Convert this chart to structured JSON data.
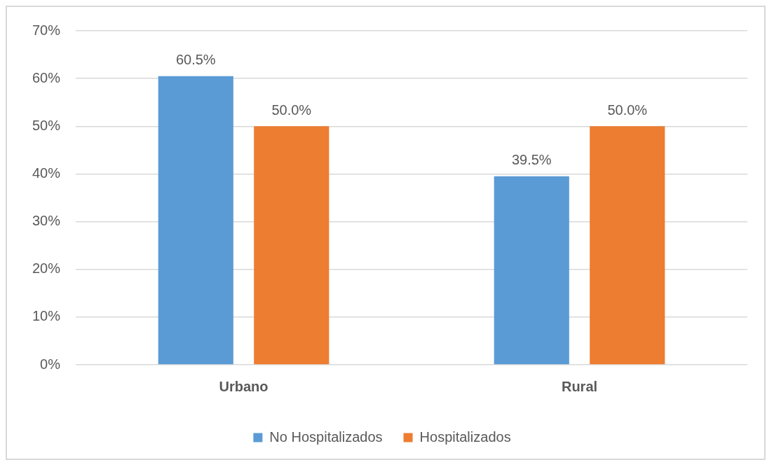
{
  "chart_data": {
    "type": "bar",
    "categories": [
      "Urbano",
      "Rural"
    ],
    "series": [
      {
        "name": "No Hospitalizados",
        "color": "#5b9bd5",
        "values": [
          60.5,
          39.5
        ],
        "value_labels": [
          "60.5%",
          "39.5%"
        ]
      },
      {
        "name": "Hospitalizados",
        "color": "#ed7d31",
        "values": [
          50.0,
          50.0
        ],
        "value_labels": [
          "50.0%",
          "50.0%"
        ]
      }
    ],
    "ylim": [
      0,
      70
    ],
    "yticks": [
      {
        "value": 0,
        "label": "0%"
      },
      {
        "value": 10,
        "label": "10%"
      },
      {
        "value": 20,
        "label": "20%"
      },
      {
        "value": 30,
        "label": "30%"
      },
      {
        "value": 40,
        "label": "40%"
      },
      {
        "value": 50,
        "label": "50%"
      },
      {
        "value": 60,
        "label": "60%"
      },
      {
        "value": 70,
        "label": "70%"
      }
    ],
    "grid": "y",
    "legend": "bottom"
  }
}
